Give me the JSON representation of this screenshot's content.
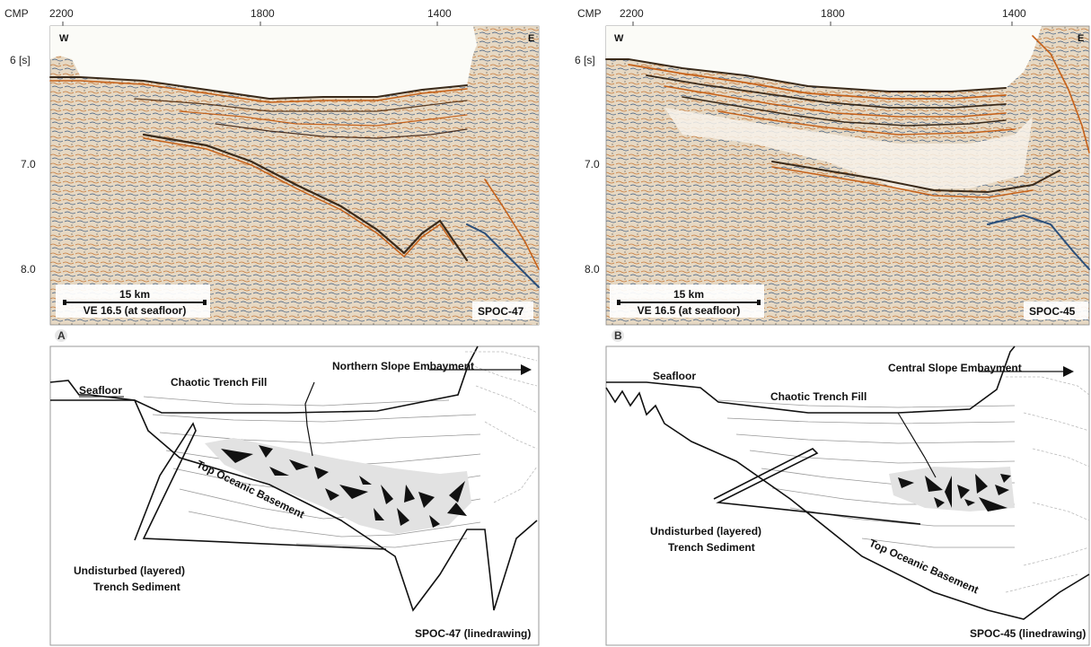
{
  "panels": [
    {
      "id": "A",
      "cmp_label": "CMP",
      "cmp_ticks": [
        "2200",
        "1800",
        "1400"
      ],
      "time_ticks": [
        "6 [s]",
        "7.0",
        "8.0"
      ],
      "west": "W",
      "east": "E",
      "scale_km": "15 km",
      "ve": "VE 16.5 (at seafloor)",
      "line_name": "SPOC-47",
      "letter": "A",
      "drawing": {
        "embayment": "Northern Slope Embayment",
        "seafloor": "Seafloor",
        "chaotic": "Chaotic Trench Fill",
        "basement": "Top Oceanic Basement",
        "undisturbed_1": "Undisturbed (layered)",
        "undisturbed_2": "Trench Sediment",
        "caption": "SPOC-47 (linedrawing)"
      }
    },
    {
      "id": "B",
      "cmp_label": "CMP",
      "cmp_ticks": [
        "2200",
        "1800",
        "1400"
      ],
      "time_ticks": [
        "6 [s]",
        "7.0",
        "8.0"
      ],
      "west": "W",
      "east": "E",
      "scale_km": "15 km",
      "ve": "VE 16.5 (at seafloor)",
      "line_name": "SPOC-45",
      "letter": "B",
      "drawing": {
        "embayment": "Central Slope Embayment",
        "seafloor": "Seafloor",
        "chaotic": "Chaotic Trench Fill",
        "basement": "Top Oceanic Basement",
        "undisturbed_1": "Undisturbed (layered)",
        "undisturbed_2": "Trench Sediment",
        "caption": "SPOC-45 (linedrawing)"
      }
    }
  ],
  "colors": {
    "seismic_bg": "#e9dcc8",
    "positive": "#c9651c",
    "negative": "#2b4f7a",
    "fill": "#e3e3e3"
  }
}
